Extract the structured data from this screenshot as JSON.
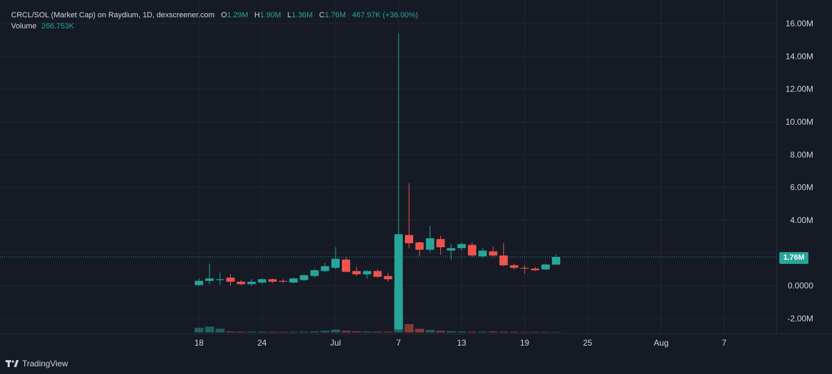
{
  "legend": {
    "title": "CRCL/SOL (Market Cap) on Raydium, 1D, dexscreener.com",
    "o_label": "O",
    "o_value": "1.29M",
    "h_label": "H",
    "h_value": "1.90M",
    "l_label": "L",
    "l_value": "1.36M",
    "c_label": "C",
    "c_value": "1.76M",
    "change": "467.97K (+36.00%)",
    "volume_label": "Volume",
    "volume_value": "266.753K"
  },
  "price_badge": "1.76M",
  "attribution": "TradingView",
  "colors": {
    "up": "#26a69a",
    "down": "#ef5350",
    "background": "#161a25",
    "grid": "#232632",
    "text": "#d1d4dc"
  },
  "chart_data": {
    "type": "candlestick",
    "title": "CRCL/SOL (Market Cap) on Raydium, 1D, dexscreener.com",
    "y_unit": "M",
    "ylim": [
      -3.0,
      16.8
    ],
    "y_ticks": [
      16,
      14,
      12,
      10,
      8,
      6,
      4,
      2,
      0,
      -2
    ],
    "y_tick_labels": [
      "16.00M",
      "14.00M",
      "12.00M",
      "10.00M",
      "8.00M",
      "6.00M",
      "4.00M",
      "",
      "0.0000",
      "-2.00M"
    ],
    "x_ticks": [
      {
        "day": 0,
        "label": "18"
      },
      {
        "day": 6,
        "label": "24"
      },
      {
        "day": 13,
        "label": "Jul"
      },
      {
        "day": 19,
        "label": "7"
      },
      {
        "day": 25,
        "label": "13"
      },
      {
        "day": 31,
        "label": "19"
      },
      {
        "day": 37,
        "label": "25"
      },
      {
        "day": 44,
        "label": "Aug"
      },
      {
        "day": 50,
        "label": "7"
      }
    ],
    "x_range_days": [
      -18,
      57
    ],
    "last_price": 1.76,
    "candles": [
      {
        "d": 0,
        "o": 0.05,
        "h": 0.45,
        "l": 0.0,
        "c": 0.3
      },
      {
        "d": 1,
        "o": 0.3,
        "h": 1.35,
        "l": 0.1,
        "c": 0.45
      },
      {
        "d": 2,
        "o": 0.35,
        "h": 0.8,
        "l": 0.05,
        "c": 0.4
      },
      {
        "d": 3,
        "o": 0.5,
        "h": 0.7,
        "l": 0.0,
        "c": 0.25
      },
      {
        "d": 4,
        "o": 0.25,
        "h": 0.35,
        "l": 0.05,
        "c": 0.1
      },
      {
        "d": 5,
        "o": 0.1,
        "h": 0.4,
        "l": 0.0,
        "c": 0.25
      },
      {
        "d": 6,
        "o": 0.2,
        "h": 0.45,
        "l": 0.1,
        "c": 0.4
      },
      {
        "d": 7,
        "o": 0.4,
        "h": 0.45,
        "l": 0.15,
        "c": 0.25
      },
      {
        "d": 8,
        "o": 0.3,
        "h": 0.4,
        "l": 0.15,
        "c": 0.25
      },
      {
        "d": 9,
        "o": 0.2,
        "h": 0.5,
        "l": 0.15,
        "c": 0.45
      },
      {
        "d": 10,
        "o": 0.35,
        "h": 0.7,
        "l": 0.3,
        "c": 0.65
      },
      {
        "d": 11,
        "o": 0.6,
        "h": 1.05,
        "l": 0.5,
        "c": 0.95
      },
      {
        "d": 12,
        "o": 0.9,
        "h": 1.4,
        "l": 0.85,
        "c": 1.2
      },
      {
        "d": 13,
        "o": 1.1,
        "h": 2.35,
        "l": 1.0,
        "c": 1.65
      },
      {
        "d": 14,
        "o": 1.6,
        "h": 1.75,
        "l": 0.95,
        "c": 0.85
      },
      {
        "d": 15,
        "o": 0.9,
        "h": 1.15,
        "l": 0.6,
        "c": 0.7
      },
      {
        "d": 16,
        "o": 0.7,
        "h": 0.95,
        "l": 0.45,
        "c": 0.9
      },
      {
        "d": 17,
        "o": 0.9,
        "h": 1.0,
        "l": 0.5,
        "c": 0.55
      },
      {
        "d": 18,
        "o": 0.6,
        "h": 0.8,
        "l": 0.25,
        "c": 0.4
      },
      {
        "d": 19,
        "o": -2.65,
        "h": 15.4,
        "l": -2.75,
        "c": 3.15
      },
      {
        "d": 20,
        "o": 3.1,
        "h": 6.25,
        "l": 2.3,
        "c": 2.6
      },
      {
        "d": 21,
        "o": 2.65,
        "h": 2.7,
        "l": 1.8,
        "c": 2.2
      },
      {
        "d": 22,
        "o": 2.2,
        "h": 3.65,
        "l": 2.05,
        "c": 2.9
      },
      {
        "d": 23,
        "o": 2.85,
        "h": 3.05,
        "l": 1.9,
        "c": 2.35
      },
      {
        "d": 24,
        "o": 2.15,
        "h": 2.55,
        "l": 1.6,
        "c": 2.3
      },
      {
        "d": 25,
        "o": 2.3,
        "h": 2.65,
        "l": 2.15,
        "c": 2.55
      },
      {
        "d": 26,
        "o": 2.5,
        "h": 2.65,
        "l": 1.75,
        "c": 1.85
      },
      {
        "d": 27,
        "o": 1.8,
        "h": 2.3,
        "l": 1.7,
        "c": 2.15
      },
      {
        "d": 28,
        "o": 2.1,
        "h": 2.4,
        "l": 1.75,
        "c": 1.85
      },
      {
        "d": 29,
        "o": 1.85,
        "h": 2.6,
        "l": 1.2,
        "c": 1.25
      },
      {
        "d": 30,
        "o": 1.25,
        "h": 1.35,
        "l": 1.0,
        "c": 1.1
      },
      {
        "d": 31,
        "o": 1.1,
        "h": 1.25,
        "l": 0.75,
        "c": 1.05
      },
      {
        "d": 32,
        "o": 1.05,
        "h": 1.15,
        "l": 0.9,
        "c": 0.95
      },
      {
        "d": 33,
        "o": 1.0,
        "h": 1.35,
        "l": 0.95,
        "c": 1.3
      },
      {
        "d": 34,
        "o": 1.29,
        "h": 1.9,
        "l": 1.36,
        "c": 1.76
      }
    ],
    "volume_relative": [
      0.55,
      0.7,
      0.45,
      0.12,
      0.1,
      0.1,
      0.1,
      0.08,
      0.08,
      0.08,
      0.1,
      0.12,
      0.2,
      0.35,
      0.2,
      0.15,
      0.12,
      0.1,
      0.1,
      5.2,
      1.0,
      0.45,
      0.3,
      0.2,
      0.15,
      0.12,
      0.1,
      0.1,
      0.12,
      0.1,
      0.08,
      0.06,
      0.06,
      0.06,
      0.06
    ]
  }
}
